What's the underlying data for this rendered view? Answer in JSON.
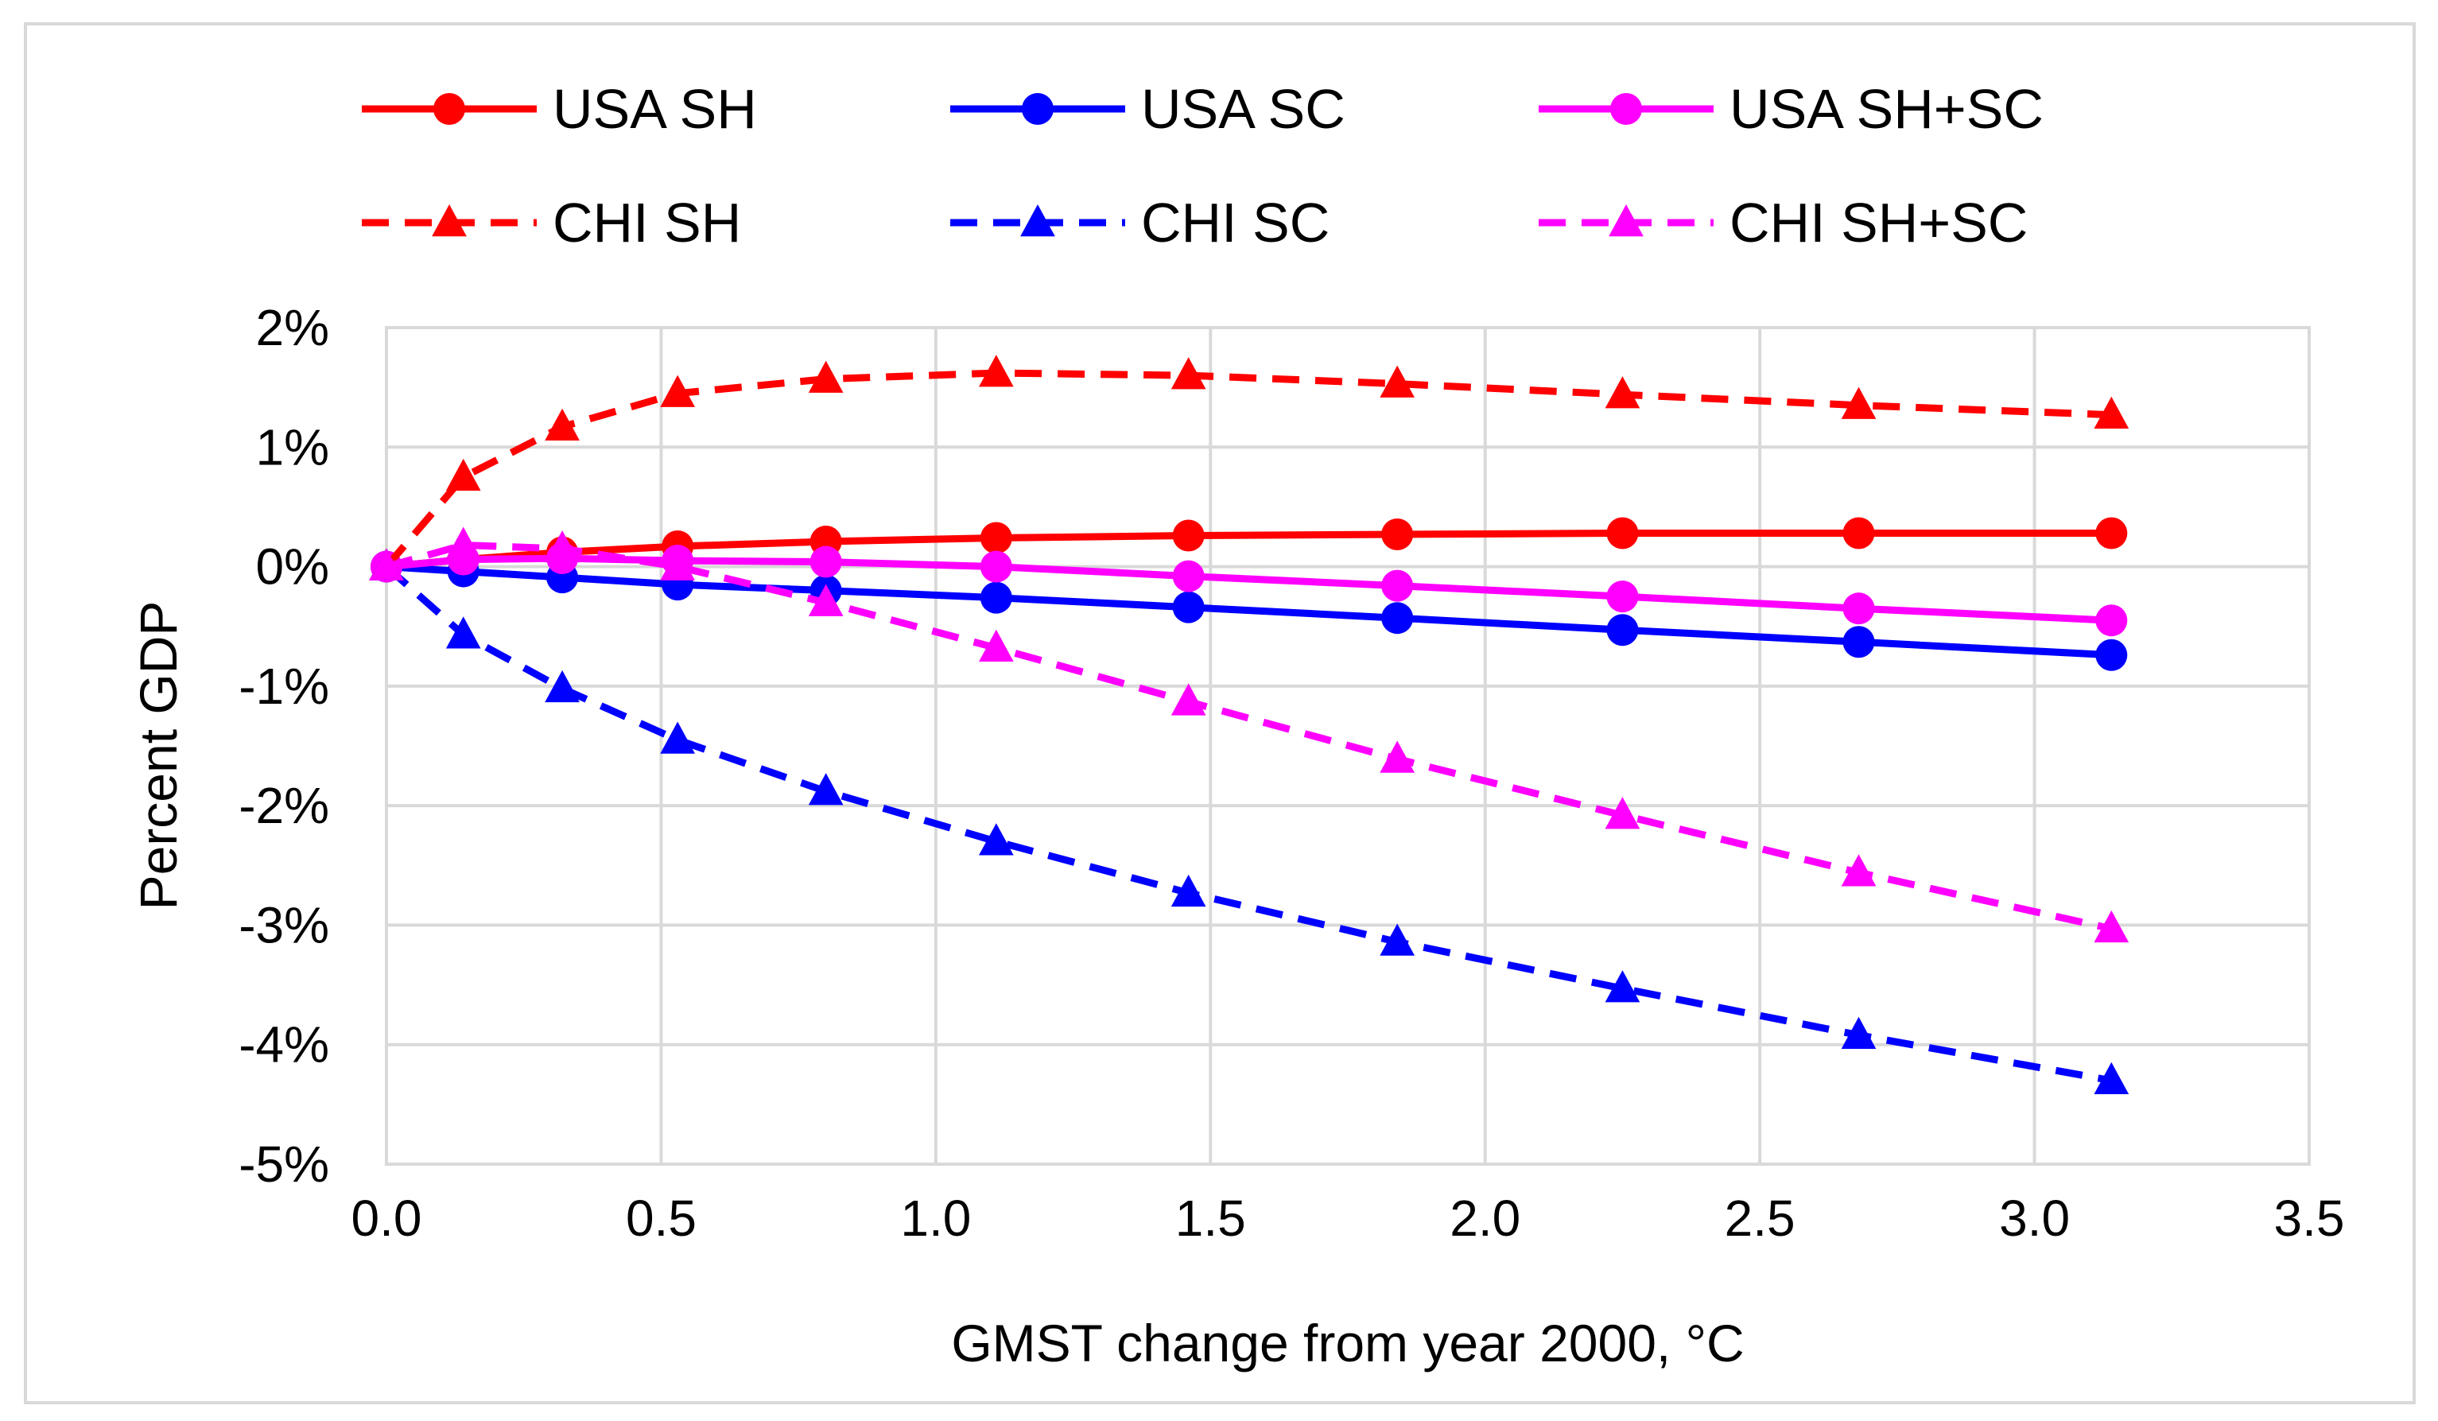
{
  "chart_data": {
    "type": "line",
    "xlabel": "GMST change from year 2000, °C",
    "ylabel": "Percent GDP",
    "xlim": [
      0,
      3.5
    ],
    "ylim": [
      -5,
      2
    ],
    "x_ticks": [
      "0.0",
      "0.5",
      "1.0",
      "1.5",
      "2.0",
      "2.5",
      "3.0",
      "3.5"
    ],
    "y_ticks": [
      "2%",
      "1%",
      "0%",
      "-1%",
      "-2%",
      "-3%",
      "-4%",
      "-5%"
    ],
    "grid": true,
    "legend_position": "top",
    "x": [
      0.0,
      0.14,
      0.32,
      0.53,
      0.8,
      1.11,
      1.46,
      1.84,
      2.25,
      2.68,
      3.14
    ],
    "series": [
      {
        "name": "USA SH",
        "color": "#ff0000",
        "dashed": false,
        "marker": "circle",
        "values": [
          0.0,
          0.06,
          0.12,
          0.17,
          0.21,
          0.24,
          0.26,
          0.27,
          0.28,
          0.28,
          0.28
        ]
      },
      {
        "name": "USA SC",
        "color": "#0000ff",
        "dashed": false,
        "marker": "circle",
        "values": [
          0.0,
          -0.04,
          -0.09,
          -0.15,
          -0.2,
          -0.26,
          -0.34,
          -0.43,
          -0.53,
          -0.63,
          -0.74
        ]
      },
      {
        "name": "USA SH+SC",
        "color": "#ff00ff",
        "dashed": false,
        "marker": "circle",
        "values": [
          0.0,
          0.06,
          0.07,
          0.05,
          0.04,
          0.0,
          -0.08,
          -0.16,
          -0.25,
          -0.35,
          -0.45
        ]
      },
      {
        "name": "CHI SH",
        "color": "#ff0000",
        "dashed": true,
        "marker": "triangle",
        "values": [
          0.0,
          0.75,
          1.17,
          1.45,
          1.57,
          1.62,
          1.6,
          1.53,
          1.44,
          1.35,
          1.27
        ]
      },
      {
        "name": "CHI SC",
        "color": "#0000ff",
        "dashed": true,
        "marker": "triangle",
        "values": [
          0.0,
          -0.57,
          -1.02,
          -1.45,
          -1.88,
          -2.3,
          -2.73,
          -3.14,
          -3.53,
          -3.92,
          -4.3
        ]
      },
      {
        "name": "CHI SH+SC",
        "color": "#ff00ff",
        "dashed": true,
        "marker": "triangle",
        "values": [
          0.0,
          0.18,
          0.15,
          0.0,
          -0.3,
          -0.68,
          -1.13,
          -1.61,
          -2.08,
          -2.56,
          -3.03
        ]
      }
    ]
  }
}
